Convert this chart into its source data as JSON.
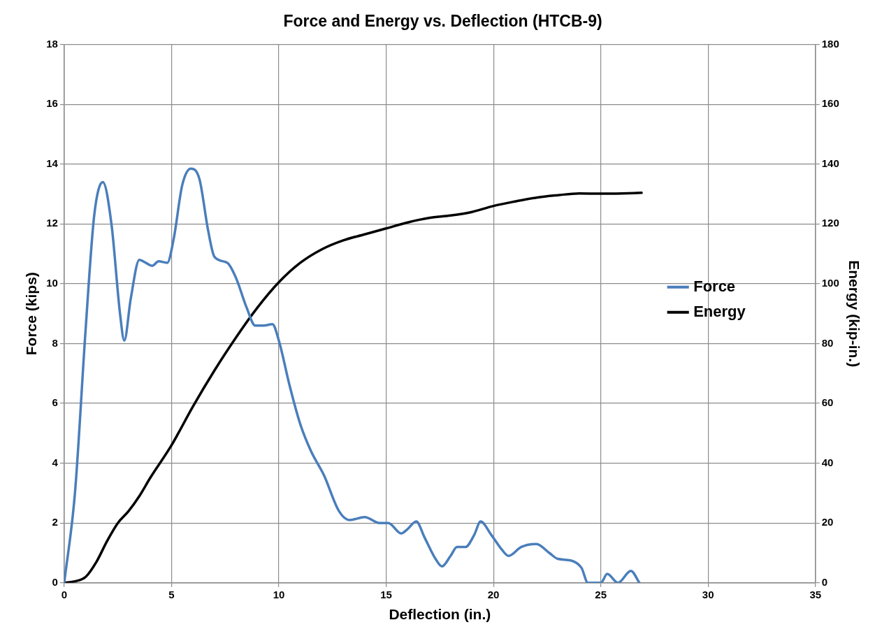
{
  "chart_data": {
    "type": "line",
    "title": "Force and Energy vs. Deflection (HTCB-9)",
    "xlabel": "Deflection (in.)",
    "ylabel": "Force (kips)",
    "y2label": "Energy (kip-in.)",
    "xlim": [
      0,
      35
    ],
    "xticks": [
      0,
      5,
      10,
      15,
      20,
      25,
      30,
      35
    ],
    "ylim": [
      0,
      18
    ],
    "yticks": [
      0,
      2,
      4,
      6,
      8,
      10,
      12,
      14,
      16,
      18
    ],
    "y2lim": [
      0,
      180
    ],
    "y2ticks": [
      0,
      20,
      40,
      60,
      80,
      100,
      120,
      140,
      160,
      180
    ],
    "grid": true,
    "legend": "right",
    "marker": "none",
    "line_style": "solid",
    "series": [
      {
        "name": "Force",
        "color": "#4a7ebb",
        "x": [
          0,
          0.5,
          1.0,
          1.4,
          1.8,
          2.2,
          2.6,
          2.8,
          3.1,
          3.5,
          3.8,
          4.1,
          4.4,
          4.8,
          5.1,
          5.5,
          5.9,
          6.3,
          6.7,
          7.0,
          7.6,
          8.0,
          8.5,
          8.9,
          9.3,
          9.7,
          10.0,
          10.5,
          11.0,
          11.5,
          12.1,
          12.8,
          13.3,
          14.0,
          14.7,
          15.1,
          15.7,
          16.0,
          16.4,
          16.8,
          17.3,
          17.6,
          18.0,
          18.3,
          18.7,
          19.1,
          19.4,
          19.9,
          20.4,
          20.7,
          21.3,
          22.0,
          22.6,
          23.0,
          23.6,
          24.1,
          24.4,
          25.0,
          25.3,
          25.8,
          26.4,
          26.8
        ],
        "values": [
          0,
          3,
          8.5,
          12.3,
          13.4,
          12,
          9,
          8.1,
          9.5,
          10.8,
          10.7,
          10.6,
          10.75,
          10.7,
          11.5,
          13.3,
          13.85,
          13.5,
          11.8,
          10.9,
          10.7,
          10.2,
          9.2,
          8.6,
          8.6,
          8.65,
          8.1,
          6.6,
          5.3,
          4.4,
          3.6,
          2.4,
          2.1,
          2.2,
          2.0,
          2.0,
          1.65,
          1.8,
          2.05,
          1.5,
          0.8,
          0.55,
          0.9,
          1.2,
          1.2,
          1.6,
          2.05,
          1.6,
          1.1,
          0.9,
          1.2,
          1.3,
          1.0,
          0.8,
          0.75,
          0.5,
          0,
          0,
          0.3,
          0,
          0.4,
          0
        ]
      },
      {
        "name": "Energy",
        "color": "#000000",
        "axis": "y2",
        "x": [
          0,
          0.5,
          1,
          1.5,
          2,
          2.5,
          3,
          3.5,
          4,
          5,
          6,
          7,
          8,
          9,
          10,
          11,
          12,
          13,
          14,
          15,
          16,
          17,
          18,
          19,
          20,
          21,
          22,
          23,
          24,
          25,
          26,
          26.9
        ],
        "values": [
          0,
          0.5,
          2,
          7,
          14,
          20,
          24,
          29,
          35,
          46,
          59,
          71,
          82,
          92,
          100.5,
          107,
          111.5,
          114.5,
          116.5,
          118.5,
          120.5,
          122,
          122.8,
          124,
          126,
          127.5,
          128.8,
          129.6,
          130.2,
          130.1,
          130.2,
          130.4
        ]
      }
    ]
  }
}
